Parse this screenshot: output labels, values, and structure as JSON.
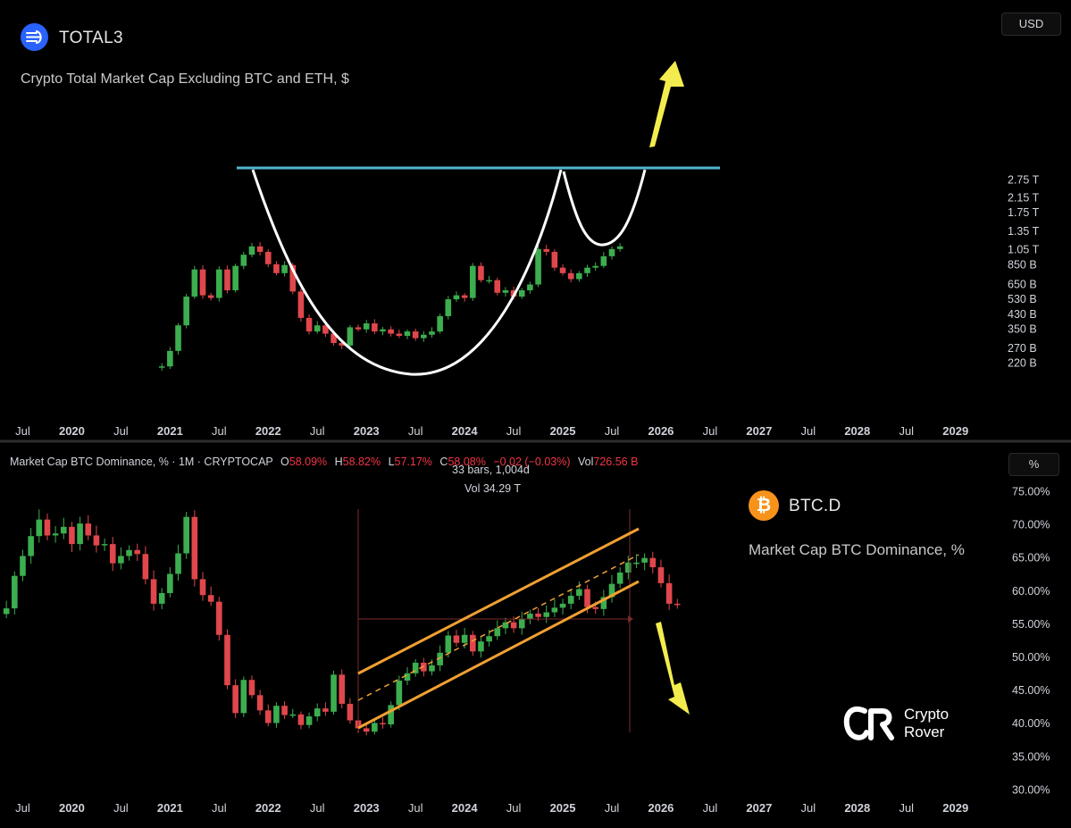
{
  "top_panel": {
    "symbol": "TOTAL3",
    "description": "Crypto Total Market Cap Excluding BTC and ETH, $",
    "currency_button": "USD",
    "price_axis_labels": [
      "2.75 T",
      "2.15 T",
      "1.75 T",
      "1.35 T",
      "1.05 T",
      "850 B",
      "650 B",
      "530 B",
      "430 B",
      "350 B",
      "270 B",
      "220 B"
    ],
    "time_axis_labels": [
      "Jul",
      "2020",
      "Jul",
      "2021",
      "Jul",
      "2022",
      "Jul",
      "2023",
      "Jul",
      "2024",
      "Jul",
      "2025",
      "Jul",
      "2026",
      "Jul",
      "2027",
      "Jul",
      "2028",
      "Jul",
      "2029"
    ],
    "logo_icon": "total3-icon"
  },
  "bottom_panel": {
    "symbol": "BTC.D",
    "description": "Market Cap BTC Dominance, %",
    "scale_button": "%",
    "legend": {
      "title": "Market Cap BTC Dominance, % · 1M · CRYPTOCAP",
      "o_label": "O",
      "o_value": "58.09%",
      "h_label": "H",
      "h_value": "58.82%",
      "l_label": "L",
      "l_value": "57.17%",
      "c_label": "C",
      "c_value": "58.08%",
      "change": "−0.02 (−0.03%)",
      "vol_label": "Vol",
      "vol_value": "726.56 B"
    },
    "measure_line1": "33 bars, 1,004d",
    "measure_line2": "Vol 34.29 T",
    "price_axis_labels": [
      "75.00%",
      "70.00%",
      "65.00%",
      "60.00%",
      "55.00%",
      "50.00%",
      "45.00%",
      "40.00%",
      "35.00%",
      "30.00%"
    ],
    "time_axis_labels": [
      "Jul",
      "2020",
      "Jul",
      "2021",
      "Jul",
      "2022",
      "Jul",
      "2023",
      "Jul",
      "2024",
      "Jul",
      "2025",
      "Jul",
      "2026",
      "Jul",
      "2027",
      "Jul",
      "2028",
      "Jul",
      "2029"
    ],
    "logo_icon": "bitcoin-icon"
  },
  "brand": {
    "line1": "Crypto",
    "line2": "Rover",
    "icon": "crypto-rover-logo"
  },
  "colors": {
    "up": "#26a69a",
    "up_body": "#3cae4f",
    "down": "#e0474c",
    "resistance": "#4fb8d0",
    "arrow": "#f3ec4e",
    "channel": "#f0a032",
    "curve": "#ffffff"
  },
  "chart_data": [
    {
      "type": "candlestick",
      "title": "TOTAL3",
      "subtitle": "Crypto Total Market Cap Excluding BTC and ETH, $",
      "interval": "1M",
      "scale": "log",
      "ylim_usd": [
        200000000000.0,
        2900000000000.0
      ],
      "x_range": [
        "2019-04",
        "2029-04"
      ],
      "monthly_closes_usd_approx": {
        "start": "2020-12",
        "values": [
          210000000000.0,
          260000000000.0,
          370000000000.0,
          550000000000.0,
          800000000000.0,
          560000000000.0,
          540000000000.0,
          800000000000.0,
          600000000000.0,
          840000000000.0,
          980000000000.0,
          1100000000000.0,
          1020000000000.0,
          860000000000.0,
          760000000000.0,
          850000000000.0,
          590000000000.0,
          410000000000.0,
          340000000000.0,
          370000000000.0,
          330000000000.0,
          290000000000.0,
          280000000000.0,
          360000000000.0,
          350000000000.0,
          380000000000.0,
          340000000000.0,
          350000000000.0,
          330000000000.0,
          320000000000.0,
          340000000000.0,
          310000000000.0,
          325000000000.0,
          340000000000.0,
          420000000000.0,
          530000000000.0,
          560000000000.0,
          540000000000.0,
          840000000000.0,
          690000000000.0,
          690000000000.0,
          580000000000.0,
          600000000000.0,
          550000000000.0,
          600000000000.0,
          650000000000.0,
          1060000000000.0,
          1020000000000.0,
          820000000000.0,
          760000000000.0,
          700000000000.0,
          760000000000.0,
          820000000000.0,
          840000000000.0,
          960000000000.0,
          1060000000000.0,
          1100000000000.0
        ]
      },
      "annotations": [
        {
          "kind": "horizontal_resistance",
          "value_usd": 1170000000000.0,
          "from": "2021-09",
          "to": "2026-04"
        },
        {
          "kind": "cup_curve",
          "from": "2021-10",
          "bottom": "2023-06",
          "to": "2024-12"
        },
        {
          "kind": "handle_curve",
          "from": "2024-12",
          "bottom": "2025-04",
          "to": "2025-09"
        },
        {
          "kind": "arrow",
          "direction": "up"
        }
      ]
    },
    {
      "type": "candlestick",
      "title": "BTC.D",
      "subtitle": "Market Cap BTC Dominance, %",
      "interval": "1M",
      "ylim_percent": [
        30,
        77.5
      ],
      "x_range": [
        "2019-04",
        "2029-04"
      ],
      "last_bar": {
        "open": 58.09,
        "high": 58.82,
        "low": 57.17,
        "close": 58.08,
        "change": -0.02,
        "change_percent": -0.03
      },
      "monthly_closes_percent_approx": {
        "start": "2019-05",
        "values": [
          57.4,
          62.3,
          65.3,
          68.3,
          70.8,
          68.4,
          68.7,
          69.7,
          67.1,
          70.2,
          68.4,
          66.9,
          67.1,
          64.2,
          65.3,
          66.2,
          65.6,
          61.8,
          58.1,
          59.7,
          62.6,
          65.7,
          71.2,
          61.8,
          59.4,
          58.4,
          53.4,
          45.8,
          41.6,
          46.6,
          44.3,
          42.0,
          40.1,
          42.7,
          41.3,
          41.4,
          39.8,
          41.1,
          42.3,
          41.8,
          47.4,
          43.0,
          40.5,
          39.3,
          38.8,
          40.1,
          39.9,
          42.8,
          46.5,
          47.6,
          49.2,
          47.9,
          48.8,
          50.7,
          53.3,
          52.2,
          53.4,
          50.9,
          52.4,
          53.2,
          54.4,
          55.3,
          54.4,
          55.8,
          56.6,
          56.1,
          56.8,
          57.5,
          58.1,
          59.3,
          60.3,
          57.6,
          57.3,
          59.1,
          61.1,
          62.8,
          64.3,
          64.3,
          65.0,
          63.6,
          61.2,
          58.1,
          58.08
        ]
      },
      "annotations": [
        {
          "kind": "ascending_channel",
          "from": "2022-11",
          "to": "2025-08"
        },
        {
          "kind": "breakdown_arrow",
          "direction": "down"
        }
      ]
    }
  ]
}
